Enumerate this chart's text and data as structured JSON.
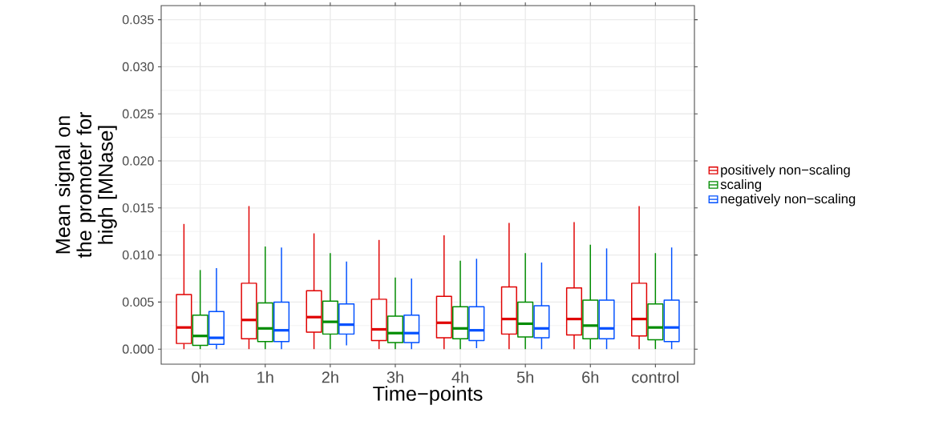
{
  "chart_data": {
    "type": "box",
    "xlabel": "Time−points",
    "ylabel": "Mean signal on the promoter for high [MNase]",
    "categories": [
      "0h",
      "1h",
      "2h",
      "3h",
      "4h",
      "5h",
      "6h",
      "control"
    ],
    "ylim": [
      -0.0016,
      0.0365
    ],
    "yticks": [
      {
        "value": 0,
        "label": "0.000"
      },
      {
        "value": 0.005,
        "label": "0.005"
      },
      {
        "value": 0.01,
        "label": "0.010"
      },
      {
        "value": 0.015,
        "label": "0.015"
      },
      {
        "value": 0.02,
        "label": "0.020"
      },
      {
        "value": 0.025,
        "label": "0.025"
      },
      {
        "value": 0.03,
        "label": "0.030"
      },
      {
        "value": 0.035,
        "label": "0.035"
      }
    ],
    "grid": true,
    "legend": "right",
    "series": [
      {
        "name": "positively non−scaling",
        "color": "#e00000",
        "boxes": [
          {
            "low": 0,
            "q1": 0.0006,
            "median": 0.0023,
            "q3": 0.0058,
            "high": 0.0133
          },
          {
            "low": 0,
            "q1": 0.0011,
            "median": 0.0031,
            "q3": 0.007,
            "high": 0.0152
          },
          {
            "low": 0,
            "q1": 0.0018,
            "median": 0.0034,
            "q3": 0.0062,
            "high": 0.0123
          },
          {
            "low": 0,
            "q1": 0.0009,
            "median": 0.0021,
            "q3": 0.0053,
            "high": 0.0116
          },
          {
            "low": 0,
            "q1": 0.0012,
            "median": 0.0028,
            "q3": 0.0056,
            "high": 0.0121
          },
          {
            "low": 0,
            "q1": 0.0016,
            "median": 0.0032,
            "q3": 0.0066,
            "high": 0.0134
          },
          {
            "low": 0,
            "q1": 0.0015,
            "median": 0.0032,
            "q3": 0.0065,
            "high": 0.0135
          },
          {
            "low": 0,
            "q1": 0.0014,
            "median": 0.0032,
            "q3": 0.007,
            "high": 0.0152
          }
        ]
      },
      {
        "name": "scaling",
        "color": "#008c00",
        "boxes": [
          {
            "low": 0,
            "q1": 0.0004,
            "median": 0.0014,
            "q3": 0.0036,
            "high": 0.0084
          },
          {
            "low": 0,
            "q1": 0.0008,
            "median": 0.0022,
            "q3": 0.0049,
            "high": 0.0109
          },
          {
            "low": 0,
            "q1": 0.0016,
            "median": 0.0029,
            "q3": 0.0051,
            "high": 0.0102
          },
          {
            "low": 0,
            "q1": 0.0007,
            "median": 0.0017,
            "q3": 0.0035,
            "high": 0.0076
          },
          {
            "low": 0,
            "q1": 0.0011,
            "median": 0.0022,
            "q3": 0.0045,
            "high": 0.0094
          },
          {
            "low": 0,
            "q1": 0.0013,
            "median": 0.0027,
            "q3": 0.005,
            "high": 0.0102
          },
          {
            "low": 0,
            "q1": 0.0011,
            "median": 0.0025,
            "q3": 0.0052,
            "high": 0.0111
          },
          {
            "low": 0,
            "q1": 0.001,
            "median": 0.0023,
            "q3": 0.0048,
            "high": 0.0102
          }
        ]
      },
      {
        "name": "negatively non−scaling",
        "color": "#0050ff",
        "boxes": [
          {
            "low": 0,
            "q1": 0.0005,
            "median": 0.0012,
            "q3": 0.004,
            "high": 0.0086
          },
          {
            "low": 0,
            "q1": 0.0008,
            "median": 0.002,
            "q3": 0.005,
            "high": 0.0108
          },
          {
            "low": 0.0004,
            "q1": 0.0016,
            "median": 0.0026,
            "q3": 0.0048,
            "high": 0.0093
          },
          {
            "low": 0,
            "q1": 0.0007,
            "median": 0.0017,
            "q3": 0.0036,
            "high": 0.0075
          },
          {
            "low": 0.0001,
            "q1": 0.0009,
            "median": 0.002,
            "q3": 0.0045,
            "high": 0.0096
          },
          {
            "low": 0,
            "q1": 0.0012,
            "median": 0.0022,
            "q3": 0.0046,
            "high": 0.0092
          },
          {
            "low": 0,
            "q1": 0.0011,
            "median": 0.0022,
            "q3": 0.0052,
            "high": 0.0107
          },
          {
            "low": 0,
            "q1": 0.0008,
            "median": 0.0023,
            "q3": 0.0052,
            "high": 0.0108
          }
        ]
      }
    ]
  }
}
